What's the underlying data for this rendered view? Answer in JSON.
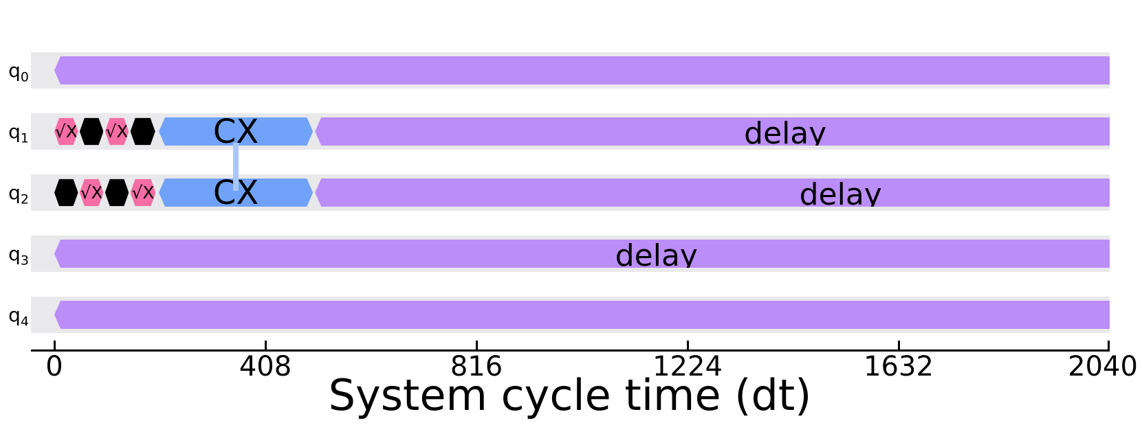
{
  "colors": {
    "delay": "#bb8df8",
    "cx": "#6fa2f8",
    "sx": "#f56da4",
    "x": "#000000",
    "link": "#a9c7f8",
    "band": "#e9e8ea",
    "text": "#000000",
    "background": "#ffffff"
  },
  "chart_data": {
    "type": "timeline",
    "title": "",
    "xlabel": "System cycle time (dt)",
    "ylabel": "",
    "x_ticks": [
      0,
      408,
      816,
      1224,
      1632,
      2040
    ],
    "x_tick_labels": [
      "0",
      "408",
      "816",
      "1224",
      "1632",
      "2040"
    ],
    "xlim": [
      -45,
      2040
    ],
    "grid": false,
    "legend": false,
    "qubit_labels": [
      {
        "base": "q",
        "sub": "0"
      },
      {
        "base": "q",
        "sub": "1"
      },
      {
        "base": "q",
        "sub": "2"
      },
      {
        "base": "q",
        "sub": "3"
      },
      {
        "base": "q",
        "sub": "4"
      }
    ],
    "rows": [
      {
        "qubit": "q0",
        "elements": [
          {
            "gate": "delay",
            "label": "",
            "t0": 0,
            "t1": 2040,
            "kind": "delay",
            "tips": "left"
          }
        ]
      },
      {
        "qubit": "q1",
        "elements": [
          {
            "gate": "sx",
            "label": "√X",
            "t0": 0,
            "t1": 46,
            "kind": "sx",
            "tips": "gate"
          },
          {
            "gate": "x",
            "label": "",
            "t0": 49,
            "t1": 95,
            "kind": "x",
            "tips": "gate"
          },
          {
            "gate": "sx",
            "label": "√X",
            "t0": 98,
            "t1": 144,
            "kind": "sx",
            "tips": "gate"
          },
          {
            "gate": "x",
            "label": "",
            "t0": 147,
            "t1": 195,
            "kind": "x",
            "tips": "gate"
          },
          {
            "gate": "cx",
            "label": "CX",
            "t0": 202,
            "t1": 500,
            "kind": "cx",
            "tips": "both"
          },
          {
            "gate": "delay",
            "label": "delay",
            "t0": 504,
            "t1": 2040,
            "kind": "delay",
            "tips": "left",
            "label_t": 1413
          }
        ]
      },
      {
        "qubit": "q2",
        "elements": [
          {
            "gate": "x",
            "label": "",
            "t0": 0,
            "t1": 46,
            "kind": "x",
            "tips": "gate"
          },
          {
            "gate": "sx",
            "label": "√X",
            "t0": 49,
            "t1": 95,
            "kind": "sx",
            "tips": "gate"
          },
          {
            "gate": "x",
            "label": "",
            "t0": 98,
            "t1": 144,
            "kind": "x",
            "tips": "gate"
          },
          {
            "gate": "sx",
            "label": "√X",
            "t0": 147,
            "t1": 196,
            "kind": "sx",
            "tips": "gate"
          },
          {
            "gate": "cx",
            "label": "CX",
            "t0": 202,
            "t1": 500,
            "kind": "cx",
            "tips": "both"
          },
          {
            "gate": "delay",
            "label": "delay",
            "t0": 504,
            "t1": 2040,
            "kind": "delay",
            "tips": "left",
            "label_t": 1520
          }
        ]
      },
      {
        "qubit": "q3",
        "elements": [
          {
            "gate": "delay",
            "label": "delay",
            "t0": 0,
            "t1": 2040,
            "kind": "delay",
            "tips": "left",
            "label_t": 1164
          }
        ]
      },
      {
        "qubit": "q4",
        "elements": [
          {
            "gate": "delay",
            "label": "",
            "t0": 0,
            "t1": 2040,
            "kind": "delay",
            "tips": "left"
          }
        ]
      }
    ],
    "link": {
      "gate": "cx",
      "rows": [
        1,
        2
      ],
      "t": 351
    }
  }
}
